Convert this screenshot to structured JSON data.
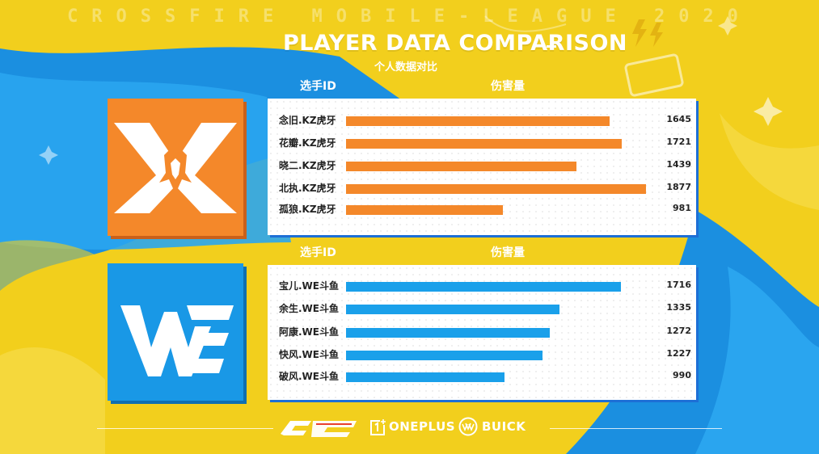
{
  "header": {
    "banner": "CROSSFIRE MOBILE-LEAGUE 2020",
    "title": "PLAYER DATA COMPARISON",
    "subtitle": "个人数据对比"
  },
  "columns": {
    "player_id": "选手ID",
    "damage": "伤害量"
  },
  "colors": {
    "kz": "#f4882a",
    "we": "#1aa0ea",
    "accent": "#1d6fd6",
    "background": "#f2cf1d"
  },
  "chart_data": [
    {
      "type": "bar",
      "orientation": "horizontal",
      "team_logo": "KZ",
      "categories": [
        "念旧.KZ虎牙",
        "花瓣.KZ虎牙",
        "晓二.KZ虎牙",
        "北执.KZ虎牙",
        "孤狼.KZ虎牙"
      ],
      "values": [
        1645,
        1721,
        1439,
        1877,
        981
      ],
      "xlim": [
        0,
        1920
      ],
      "grid": false,
      "color": "#f4882a"
    },
    {
      "type": "bar",
      "orientation": "horizontal",
      "team_logo": "WE",
      "categories": [
        "宝儿.WE斗鱼",
        "余生.WE斗鱼",
        "阿康.WE斗鱼",
        "快风.WE斗鱼",
        "破风.WE斗鱼"
      ],
      "values": [
        1716,
        1335,
        1272,
        1227,
        990
      ],
      "xlim": [
        0,
        1920
      ],
      "grid": false,
      "color": "#1aa0ea"
    }
  ],
  "footer": {
    "sponsors": [
      "ONEPLUS",
      "BUICK"
    ]
  }
}
